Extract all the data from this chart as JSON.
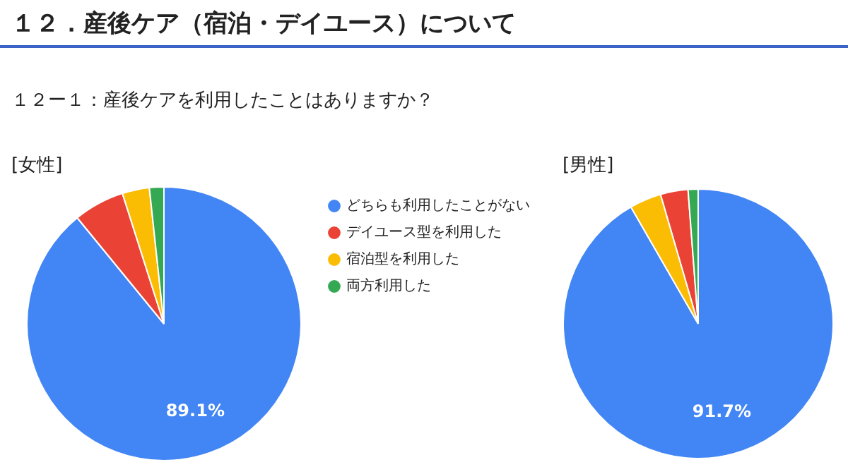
{
  "chart_data": [
    {
      "type": "other",
      "title": "１２．産後ケア（宿泊・デイユース）について",
      "subtitle": "１２ー１：産後ケアを利用したことはありますか？"
    },
    {
      "type": "pie",
      "title": "[女性]",
      "categories": [
        "どちらも利用したことがない",
        "デイユース型を利用した",
        "宿泊型を利用した",
        "両方利用した"
      ],
      "values": [
        89.1,
        6,
        3.2,
        1.7
      ],
      "colors": [
        "#4285f4",
        "#ea4335",
        "#fbbc04",
        "#34a853"
      ],
      "value_labels": [
        "89.1%",
        null,
        null,
        null
      ],
      "legend": "right"
    },
    {
      "type": "pie",
      "title": "[男性]",
      "categories": [
        null,
        null,
        null,
        null
      ],
      "values": [
        91.7,
        3.8,
        3.3,
        1.2
      ],
      "colors": [
        "#4285f4",
        "#fbbc04",
        "#ea4335",
        "#34a853"
      ],
      "value_labels": [
        "91.7%",
        null,
        null,
        null
      ]
    }
  ]
}
